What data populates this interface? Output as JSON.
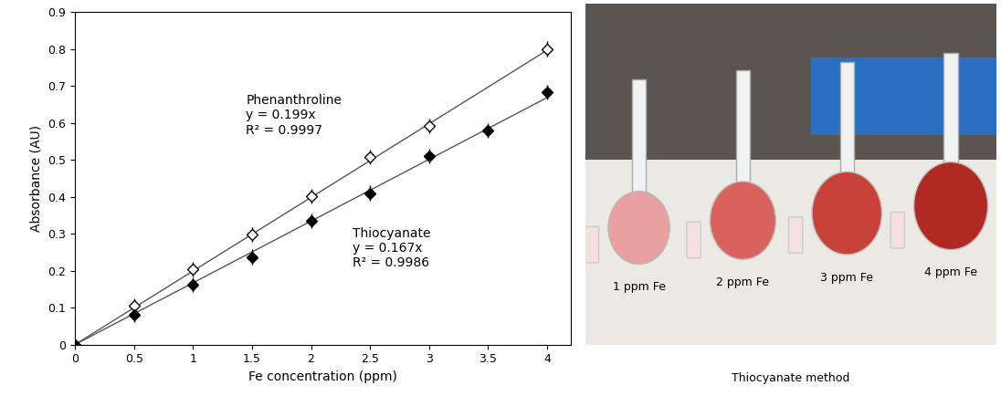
{
  "chart_data": {
    "type": "scatter",
    "x_label": "Fe concentration (ppm)",
    "y_label": "Absorbance (AU)",
    "x": [
      0,
      0.5,
      1,
      1.5,
      2,
      2.5,
      3,
      3.5,
      4
    ],
    "series": [
      {
        "name": "Phenanthroline",
        "color": "#000000",
        "marker": "open_diamond",
        "values": [
          0,
          0.105,
          0.203,
          0.298,
          0.402,
          0.507,
          0.592,
          null,
          0.8
        ],
        "errors": [
          0.01,
          0.02,
          0.02,
          0.02,
          0.02,
          0.02,
          0.02,
          null,
          0.02
        ],
        "fit_slope": 0.199,
        "equation": "y = 0.199x",
        "r2_label": "R² = 0.9997"
      },
      {
        "name": "Thiocyanate",
        "color": "#000000",
        "marker": "diamond",
        "values": [
          0,
          0.08,
          0.162,
          0.237,
          0.335,
          0.41,
          0.51,
          0.58,
          0.682
        ],
        "errors": [
          0.01,
          0.02,
          0.02,
          0.02,
          0.02,
          0.02,
          0.02,
          0.02,
          0.02
        ],
        "fit_slope": 0.167,
        "equation": "y = 0.167x",
        "r2_label": "R² = 0.9986"
      }
    ],
    "xlim": [
      0,
      4.2
    ],
    "xticks": [
      0,
      0.5,
      1,
      1.5,
      2,
      2.5,
      3,
      3.5,
      4
    ],
    "ylim": [
      0,
      0.9
    ],
    "yticks": [
      0,
      0.1,
      0.2,
      0.3,
      0.4,
      0.5,
      0.6,
      0.7,
      0.8,
      0.9
    ],
    "grid": false
  },
  "photo": {
    "labels": [
      "1 ppm Fe",
      "2 ppm Fe",
      "3 ppm Fe",
      "4 ppm Fe"
    ],
    "caption": "Thiocyanate method"
  }
}
